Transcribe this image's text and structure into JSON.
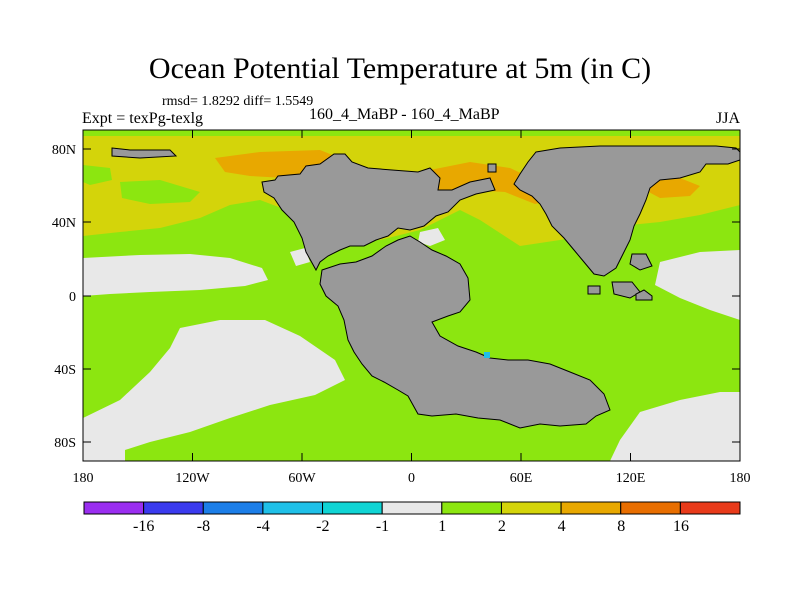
{
  "title": "Ocean Potential Temperature at 5m (in C)",
  "stats": "rmsd= 1.8292  diff= 1.5549",
  "left_label": "Expt = texPg-texlg",
  "center_label": "160_4_MaBP - 160_4_MaBP",
  "right_label": "JJA",
  "lat_ticks": [
    "80N",
    "40N",
    "0",
    "40S",
    "80S"
  ],
  "lon_ticks": [
    "180",
    "120W",
    "60W",
    "0",
    "60E",
    "120E",
    "180"
  ],
  "colorbar": {
    "labels": [
      "-16",
      "-8",
      "-4",
      "-2",
      "-1",
      "1",
      "2",
      "4",
      "8",
      "16"
    ],
    "colors": [
      "#9a2ef0",
      "#3a3aee",
      "#1c7ee8",
      "#1fc0e8",
      "#10d4d4",
      "#e8e8e8",
      "#8ce610",
      "#d4d40a",
      "#e8a800",
      "#e86e00",
      "#e83a1a"
    ]
  },
  "palette": {
    "land": "#999999",
    "near_zero": "#e8e8e8",
    "green": "#8ce610",
    "yellow": "#d4d40a",
    "orange": "#e8a800",
    "dark_orange": "#e86e00",
    "cyan": "#1fc0e8"
  }
}
